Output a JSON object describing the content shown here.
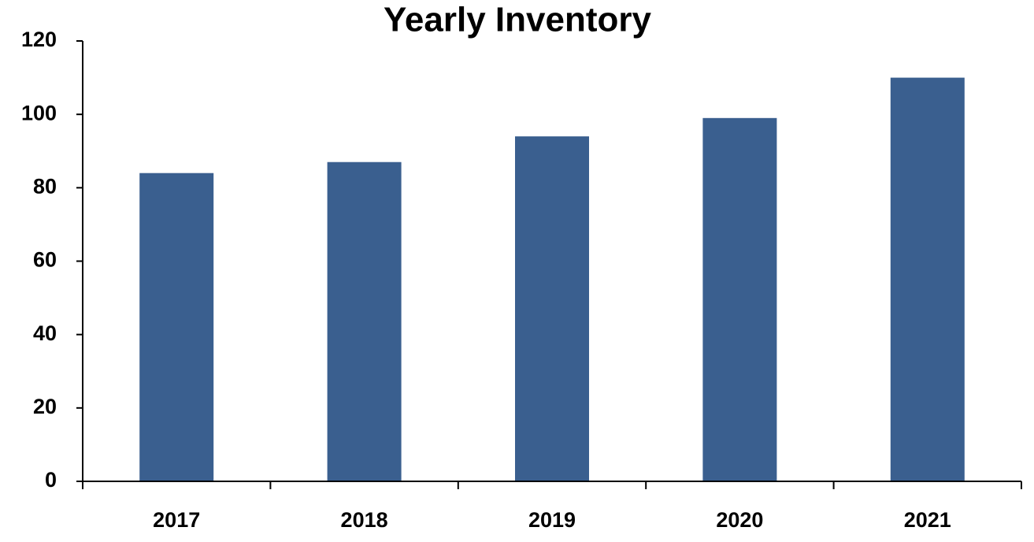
{
  "chart_data": {
    "type": "bar",
    "title": "Yearly Inventory",
    "categories": [
      "2017",
      "2018",
      "2019",
      "2020",
      "2021"
    ],
    "values": [
      84,
      87,
      94,
      99,
      110
    ],
    "color": "#3a5f8f",
    "ylim": [
      0,
      120
    ],
    "yticks": [
      0,
      20,
      40,
      60,
      80,
      100,
      120
    ],
    "grid": false
  }
}
